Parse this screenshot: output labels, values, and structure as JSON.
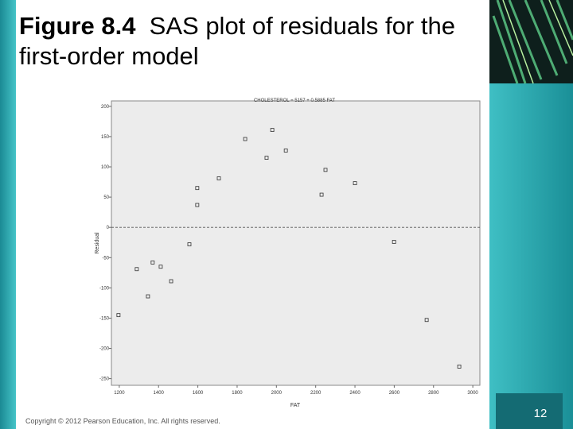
{
  "slide": {
    "title_label": "Figure 8.4",
    "title_text": "SAS plot of residuals for the first-order model",
    "copyright": "Copyright © 2012 Pearson Education, Inc. All rights reserved.",
    "page_number": "12"
  },
  "chart_data": {
    "type": "scatter",
    "title": "CHOLESTEROL = 5157 + 0.5885 FAT",
    "x_label": "FAT",
    "y_label": "Residual",
    "x": [
      1196,
      1289,
      1346,
      1370,
      1411,
      1464,
      1557,
      1597,
      1597,
      1707,
      1841,
      1950,
      1979,
      2048,
      2230,
      2250,
      2400,
      2599,
      2765,
      2931
    ],
    "values": [
      -145,
      -69,
      -114,
      -58,
      -65,
      -89,
      -28,
      37,
      65,
      81,
      146,
      115,
      161,
      127,
      54,
      95,
      73,
      -24,
      -153,
      -230
    ],
    "color": "#333333",
    "xlim": [
      1160,
      3036
    ],
    "ylim": [
      -261,
      209
    ],
    "xticks": [
      1200,
      1400,
      1600,
      1800,
      2000,
      2200,
      2400,
      2600,
      2800,
      3000
    ],
    "yticks": [
      -250,
      -200,
      -150,
      -100,
      -50,
      0,
      50,
      100,
      150,
      200
    ],
    "reference_line": 0
  }
}
